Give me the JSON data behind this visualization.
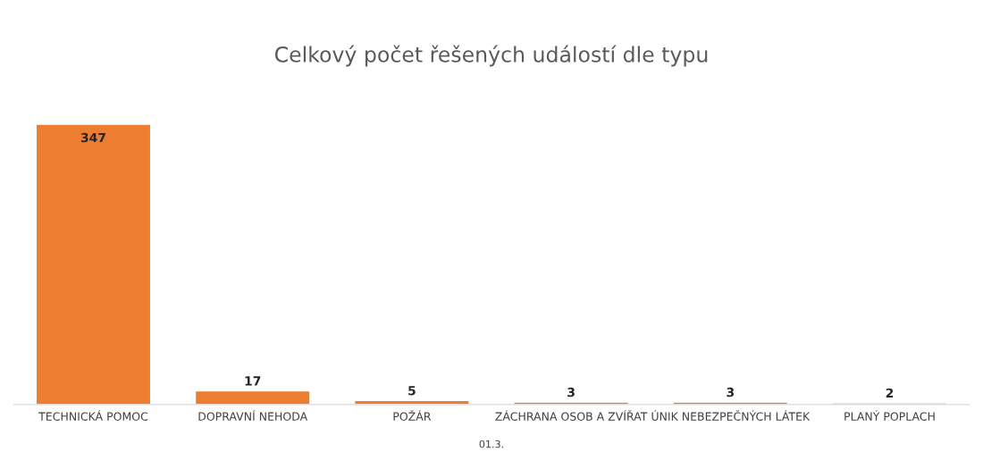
{
  "chart_data": {
    "type": "bar",
    "title": "Celkový počet řešených událostí dle typu",
    "xlabel": "01.3.",
    "categories": [
      "TECHNICKÁ POMOC",
      "DOPRAVNÍ NEHODA",
      "POŽÁR",
      "ZÁCHRANA OSOB A ZVÍŘAT",
      "ÚNIK NEBEZPEČNÝCH LÁTEK",
      "PLANÝ POPLACH"
    ],
    "values": [
      347,
      17,
      5,
      3,
      3,
      2
    ],
    "color": "#ed7d31",
    "data_labels": true,
    "grid": false,
    "legend": false
  }
}
